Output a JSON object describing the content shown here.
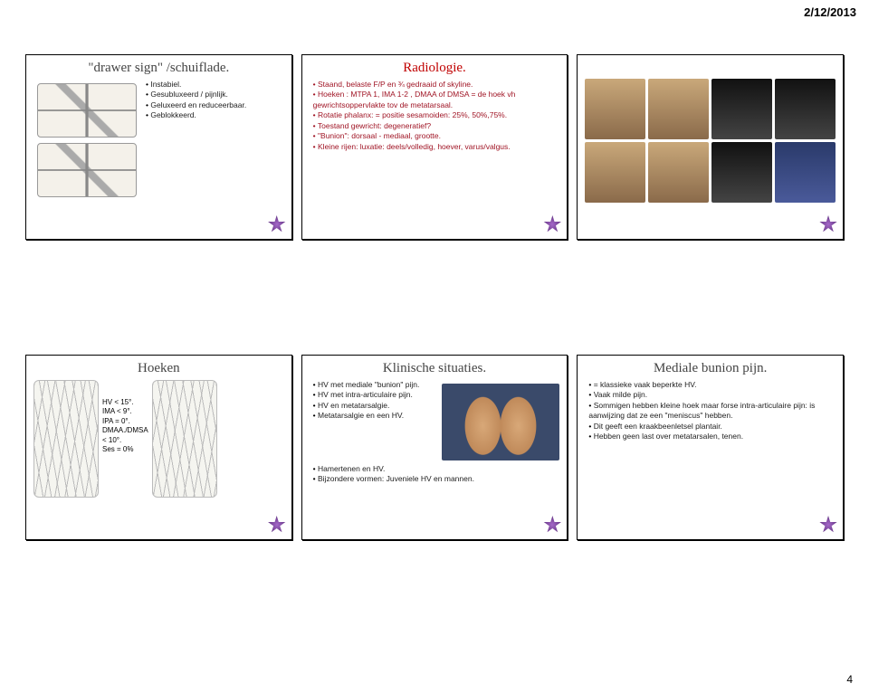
{
  "date": "2/12/2013",
  "pageNumber": "4",
  "row1": {
    "slide1": {
      "title": "\"drawer sign\" /schuiflade.",
      "bullets": [
        "Instabiel.",
        "Gesubluxeerd / pijnlijk.",
        "Geluxeerd en reduceerbaar.",
        "Geblokkeerd."
      ]
    },
    "slide2": {
      "title": "Radiologie.",
      "bullets": [
        "Staand, belaste F/P en ¾ gedraaid of skyline.",
        "Hoeken : MTPA 1, IMA 1-2 , DMAA of DMSA = de hoek vh gewrichtsoppervlakte tov de metatarsaal.",
        "Rotatie phalanx: = positie sesamoiden: 25%, 50%,75%.",
        "Toestand gewricht: degeneratief?",
        "\"Bunion\": dorsaal - mediaal, grootte.",
        "Kleine rijen: luxatie: deels/volledig, hoever, varus/valgus."
      ]
    }
  },
  "row2": {
    "slide4": {
      "title": "Hoeken",
      "text": "HV < 15°.\nIMA < 9°.\nIPA = 0°.\nDMAA./DMSA\n< 10°.\nSes = 0%"
    },
    "slide5": {
      "title": "Klinische situaties.",
      "bullets": [
        "HV met mediale \"bunion\" pijn.",
        "HV met intra-articulaire pijn.",
        "HV en metatarsalgie.",
        "Metatarsalgie en een HV.",
        "Hamertenen en HV.",
        "Bijzondere vormen: Juveniele HV en mannen."
      ]
    },
    "slide6": {
      "title": "Mediale bunion pijn.",
      "bullets": [
        "= klassieke vaak beperkte HV.",
        "Vaak milde pijn.",
        "Sommigen hebben kleine hoek maar forse intra-articulaire pijn: is aanwijzing dat ze een \"meniscus\" hebben.",
        "Dit geeft een kraakbeenletsel plantair.",
        "Hebben geen last over metatarsalen, tenen."
      ]
    }
  }
}
